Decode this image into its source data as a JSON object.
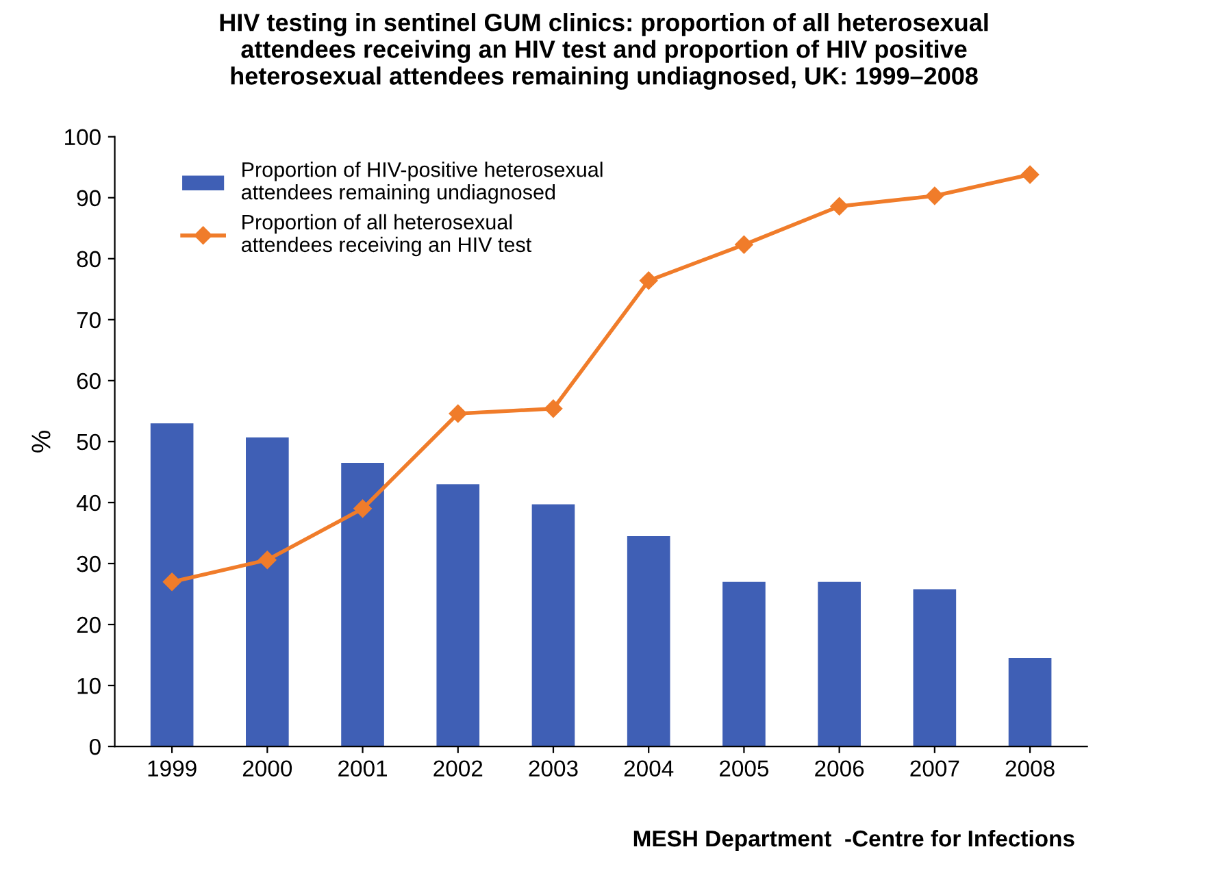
{
  "chart_data": {
    "type": "bar",
    "title": "HIV testing in sentinel GUM clinics: proportion of all heterosexual\nattendees receiving an HIV test and proportion of HIV positive\nheterosexual attendees remaining undiagnosed, UK: 1999–2008",
    "ylabel": "%",
    "categories": [
      "1999",
      "2000",
      "2001",
      "2002",
      "2003",
      "2004",
      "2005",
      "2006",
      "2007",
      "2008"
    ],
    "series": [
      {
        "name": "Proportion of HIV-positive heterosexual\nattendees remaining undiagnosed",
        "color": "#3f5fb5",
        "values": [
          53,
          50.7,
          46.5,
          43,
          39.7,
          34.5,
          27,
          27,
          25.8,
          14.5
        ]
      },
      {
        "name": "Proportion of all heterosexual\nattendees receiving an HIV test",
        "type": "line",
        "color": "#f07c2a",
        "marker": "diamond",
        "values": [
          27,
          30.6,
          39,
          54.6,
          55.4,
          76.4,
          82.3,
          88.6,
          90.3,
          93.8
        ]
      }
    ],
    "ylim": [
      0,
      100
    ],
    "yticks": [
      0,
      10,
      20,
      30,
      40,
      50,
      60,
      70,
      80,
      90,
      100
    ],
    "grid": false,
    "legend": "top left",
    "annotations": [
      "MESH Department  -Centre for Infections"
    ]
  }
}
